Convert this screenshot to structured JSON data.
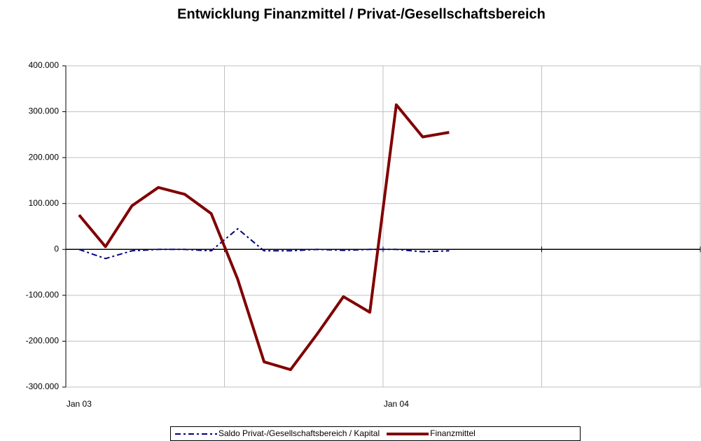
{
  "chart_data": {
    "type": "line",
    "title": "Entwicklung Finanzmittel / Privat-/Gesellschaftsbereich",
    "categories": [
      "Jan 03",
      null,
      null,
      null,
      null,
      null,
      null,
      null,
      null,
      null,
      null,
      null,
      "Jan 04",
      null,
      null,
      null,
      null,
      null,
      null,
      null,
      null,
      null,
      null,
      null
    ],
    "series": [
      {
        "name": "Saldo Privat-/Gesellschaftsbereich / Kapital",
        "color": "#000080",
        "values": [
          0,
          -20000,
          -3000,
          0,
          0,
          -3000,
          45000,
          -3000,
          -3000,
          0,
          -2000,
          0,
          0,
          -5000,
          -3000,
          null,
          null,
          null,
          null,
          null,
          null,
          null,
          null,
          null
        ]
      },
      {
        "name": "Finanzmittel",
        "color": "#800000",
        "values": [
          75000,
          6000,
          95000,
          135000,
          120000,
          78000,
          -65000,
          -245000,
          -262000,
          -185000,
          -103000,
          -137000,
          315000,
          245000,
          255000,
          null,
          null,
          null,
          null,
          null,
          null,
          null,
          null,
          null
        ]
      }
    ],
    "ylim": [
      -300000,
      400000
    ],
    "yticks": [
      {
        "value": -300000,
        "label": "-300.000"
      },
      {
        "value": -200000,
        "label": "-200.000"
      },
      {
        "value": -100000,
        "label": "-100.000"
      },
      0,
      {
        "value": 100000,
        "label": "100.000"
      },
      {
        "value": 200000,
        "label": "200.000"
      },
      {
        "value": 300000,
        "label": "300.000"
      },
      {
        "value": 400000,
        "label": "400.000"
      }
    ],
    "grid": true
  }
}
